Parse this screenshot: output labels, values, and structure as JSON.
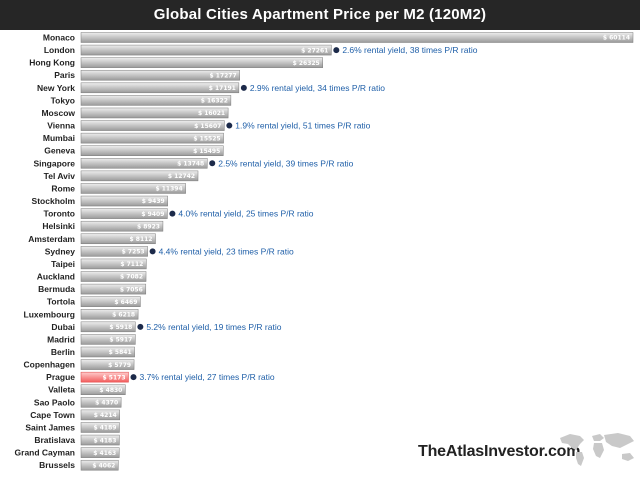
{
  "title": "Global Cities Apartment Price per M2 (120M2)",
  "brand": "TheAtlasInvestor.com",
  "colors": {
    "title_bg": "#262626",
    "bar_top": "#eeeeee",
    "bar_bottom": "#9a9a9a",
    "highlight_top": "#ffcccc",
    "highlight_bottom": "#f25c5c",
    "annotation": "#1f5fa8",
    "marker": "#1c2a4a"
  },
  "icons": {
    "map": "world-map-icon",
    "marker": "dot-icon"
  },
  "chart_data": {
    "type": "bar",
    "orientation": "horizontal",
    "value_prefix": "$",
    "categories": [
      "Monaco",
      "London",
      "Hong Kong",
      "Paris",
      "New York",
      "Tokyo",
      "Moscow",
      "Vienna",
      "Mumbai",
      "Geneva",
      "Singapore",
      "Tel Aviv",
      "Rome",
      "Stockholm",
      "Toronto",
      "Helsinki",
      "Amsterdam",
      "Sydney",
      "Taipei",
      "Auckland",
      "Bermuda",
      "Tortola",
      "Luxembourg",
      "Dubai",
      "Madrid",
      "Berlin",
      "Copenhagen",
      "Prague",
      "Valleta",
      "Sao Paolo",
      "Cape Town",
      "Saint James",
      "Bratislava",
      "Grand Cayman",
      "Brussels"
    ],
    "value_labels": [
      "$ 60114",
      "$ 27261",
      "$ 26325",
      "$ 17277",
      "$ 17191",
      "$ 16322",
      "$ 16021",
      "$ 15607",
      "$ 15525",
      "$ 15495",
      "$ 13748",
      "$ 12742",
      "$ 11394",
      "$ 9439",
      "$ 9409",
      "$ 8923",
      "$ 8112",
      "$ 7253",
      "$ 7112",
      "$ 7082",
      "$ 7056",
      "$ 6469",
      "$ 6218",
      "$ 5918",
      "$ 5917",
      "$ 5841",
      "$ 5779",
      "$ 5173",
      "$ 4830",
      "$ 4370",
      "$ 4214",
      "$ 4189",
      "$ 4183",
      "$ 4163",
      "$ 4062"
    ],
    "values": [
      60114,
      27261,
      26325,
      17277,
      17191,
      16322,
      16021,
      15607,
      15525,
      15495,
      13748,
      12742,
      11394,
      9439,
      9409,
      8923,
      8112,
      7253,
      7112,
      7082,
      7056,
      6469,
      6218,
      5918,
      5917,
      5841,
      5779,
      5173,
      4830,
      4370,
      4214,
      4189,
      4183,
      4163,
      4062
    ],
    "highlight": "Prague",
    "xlim": [
      0,
      60114
    ],
    "annotations": [
      {
        "category": "London",
        "text": "2.6% rental yield, 38 times P/R ratio"
      },
      {
        "category": "New York",
        "text": "2.9% rental yield, 34 times P/R ratio"
      },
      {
        "category": "Vienna",
        "text": "1.9% rental yield, 51 times P/R ratio"
      },
      {
        "category": "Singapore",
        "text": "2.5% rental yield, 39 times P/R ratio"
      },
      {
        "category": "Toronto",
        "text": "4.0% rental yield, 25 times P/R ratio"
      },
      {
        "category": "Sydney",
        "text": "4.4% rental yield, 23 times P/R ratio"
      },
      {
        "category": "Dubai",
        "text": "5.2% rental yield, 19 times P/R ratio"
      },
      {
        "category": "Prague",
        "text": "3.7% rental yield, 27 times P/R ratio"
      }
    ]
  }
}
